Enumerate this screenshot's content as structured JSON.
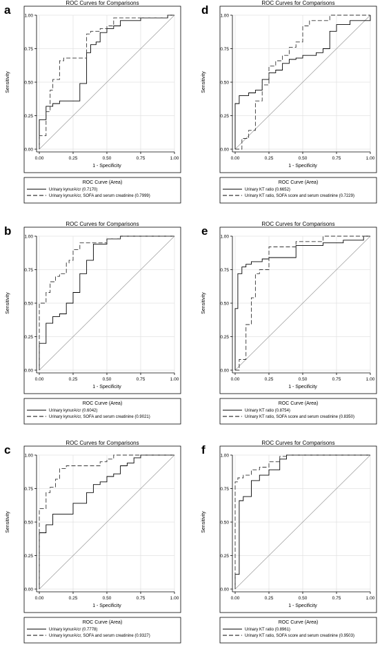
{
  "chart_data": [
    {
      "panel": "a",
      "type": "line",
      "title": "ROC Curves for Comparisons",
      "xlabel": "1 - Specificity",
      "ylabel": "Sensitivity",
      "xlim": [
        0,
        1
      ],
      "ylim": [
        0,
        1
      ],
      "xticks": [
        "0.00",
        "0.25",
        "0.50",
        "0.75",
        "1.00"
      ],
      "yticks": [
        "0.00",
        "0.25",
        "0.50",
        "0.75",
        "1.00"
      ],
      "grid": true,
      "legend_title": "ROC Curve (Area)",
      "legend_position": "bottom",
      "series": [
        {
          "name": "Urinary kynurA/cr",
          "area": "(0.7170)",
          "dash": "solid",
          "x": [
            0,
            0,
            0.05,
            0.05,
            0.1,
            0.1,
            0.15,
            0.15,
            0.3,
            0.3,
            0.35,
            0.35,
            0.38,
            0.38,
            0.42,
            0.42,
            0.45,
            0.45,
            0.5,
            0.5,
            0.55,
            0.55,
            0.6,
            0.6,
            0.75,
            0.75,
            0.95,
            0.95,
            1
          ],
          "y": [
            0,
            0.22,
            0.22,
            0.32,
            0.32,
            0.34,
            0.34,
            0.36,
            0.36,
            0.49,
            0.49,
            0.72,
            0.72,
            0.78,
            0.78,
            0.8,
            0.8,
            0.87,
            0.87,
            0.9,
            0.9,
            0.92,
            0.92,
            0.96,
            0.96,
            0.98,
            0.98,
            1,
            1
          ]
        },
        {
          "name": "Urinary kynurA/cr, SOFA and serum creatinine",
          "area": "(0.7999)",
          "dash": "dash",
          "x": [
            0,
            0,
            0.05,
            0.05,
            0.08,
            0.08,
            0.1,
            0.1,
            0.15,
            0.15,
            0.18,
            0.18,
            0.25,
            0.25,
            0.35,
            0.35,
            0.38,
            0.38,
            0.45,
            0.45,
            0.5,
            0.5,
            0.55,
            0.55,
            0.95,
            0.95,
            1
          ],
          "y": [
            0,
            0.1,
            0.1,
            0.28,
            0.28,
            0.44,
            0.44,
            0.52,
            0.52,
            0.66,
            0.66,
            0.68,
            0.68,
            0.68,
            0.68,
            0.86,
            0.86,
            0.88,
            0.88,
            0.9,
            0.9,
            0.92,
            0.92,
            0.98,
            0.98,
            1,
            1
          ]
        }
      ]
    },
    {
      "panel": "b",
      "type": "line",
      "title": "ROC Curves for Comparisons",
      "xlabel": "1 - Specificity",
      "ylabel": "Sensitivity",
      "xlim": [
        0,
        1
      ],
      "ylim": [
        0,
        1
      ],
      "xticks": [
        "0.00",
        "0.25",
        "0.50",
        "0.75",
        "1.00"
      ],
      "yticks": [
        "0.00",
        "0.25",
        "0.50",
        "0.75",
        "1.00"
      ],
      "grid": true,
      "legend_title": "ROC Curve (Area)",
      "legend_position": "bottom",
      "series": [
        {
          "name": "Urinary kynurA/cr",
          "area": "(0.6042)",
          "dash": "solid",
          "x": [
            0,
            0,
            0.05,
            0.05,
            0.1,
            0.1,
            0.15,
            0.15,
            0.2,
            0.2,
            0.25,
            0.25,
            0.3,
            0.3,
            0.35,
            0.35,
            0.4,
            0.4,
            0.5,
            0.5,
            0.6,
            0.6,
            1
          ],
          "y": [
            0,
            0.2,
            0.2,
            0.35,
            0.35,
            0.4,
            0.4,
            0.42,
            0.42,
            0.5,
            0.5,
            0.58,
            0.58,
            0.72,
            0.72,
            0.82,
            0.82,
            0.94,
            0.94,
            0.98,
            0.98,
            1,
            1
          ]
        },
        {
          "name": "Urinary kynurA/cr, SOFA and serum creatinine",
          "area": "(0.9021)",
          "dash": "dash",
          "x": [
            0,
            0,
            0.05,
            0.05,
            0.08,
            0.08,
            0.12,
            0.12,
            0.15,
            0.15,
            0.2,
            0.2,
            0.22,
            0.22,
            0.25,
            0.25,
            0.3,
            0.3,
            0.5,
            0.5,
            0.6,
            0.6,
            1
          ],
          "y": [
            0,
            0.5,
            0.5,
            0.58,
            0.58,
            0.66,
            0.66,
            0.7,
            0.7,
            0.72,
            0.72,
            0.8,
            0.8,
            0.82,
            0.82,
            0.9,
            0.9,
            0.95,
            0.95,
            0.98,
            0.98,
            1,
            1
          ]
        }
      ]
    },
    {
      "panel": "c",
      "type": "line",
      "title": "ROC Curves for Comparisons",
      "xlabel": "1 - Specificity",
      "ylabel": "Sensitivity",
      "xlim": [
        0,
        1
      ],
      "ylim": [
        0,
        1
      ],
      "xticks": [
        "0.00",
        "0.25",
        "0.50",
        "0.75",
        "1.00"
      ],
      "yticks": [
        "0.00",
        "0.25",
        "0.50",
        "0.75",
        "1.00"
      ],
      "grid": true,
      "legend_title": "ROC Curve (Area)",
      "legend_position": "bottom",
      "series": [
        {
          "name": "Urinary kynurA/cr",
          "area": "(0.7778)",
          "dash": "solid",
          "x": [
            0,
            0,
            0.05,
            0.05,
            0.1,
            0.1,
            0.25,
            0.25,
            0.35,
            0.35,
            0.4,
            0.4,
            0.45,
            0.45,
            0.5,
            0.5,
            0.55,
            0.55,
            0.6,
            0.6,
            0.65,
            0.65,
            0.7,
            0.7,
            0.75,
            0.75,
            1
          ],
          "y": [
            0,
            0.42,
            0.42,
            0.48,
            0.48,
            0.56,
            0.56,
            0.64,
            0.64,
            0.72,
            0.72,
            0.78,
            0.78,
            0.8,
            0.8,
            0.84,
            0.84,
            0.86,
            0.86,
            0.92,
            0.92,
            0.94,
            0.94,
            0.98,
            0.98,
            1,
            1
          ]
        },
        {
          "name": "Urinary kynurA/cr, SOFA and serum creatinine",
          "area": "(0.9327)",
          "dash": "dash",
          "x": [
            0,
            0,
            0.05,
            0.05,
            0.08,
            0.08,
            0.12,
            0.12,
            0.15,
            0.15,
            0.2,
            0.2,
            0.45,
            0.45,
            0.5,
            0.5,
            0.55,
            0.55,
            0.6,
            0.6,
            1
          ],
          "y": [
            0,
            0.6,
            0.6,
            0.72,
            0.72,
            0.76,
            0.76,
            0.82,
            0.82,
            0.9,
            0.9,
            0.92,
            0.92,
            0.95,
            0.95,
            0.97,
            0.97,
            1,
            1,
            1,
            1
          ]
        }
      ]
    },
    {
      "panel": "d",
      "type": "line",
      "title": "ROC Curves for Comparisons",
      "xlabel": "1 - Specificity",
      "ylabel": "Sensitivity",
      "xlim": [
        0,
        1
      ],
      "ylim": [
        0,
        1
      ],
      "xticks": [
        "0.00",
        "0.25",
        "0.50",
        "0.75",
        "1.00"
      ],
      "yticks": [
        "0.00",
        "0.25",
        "0.50",
        "0.75",
        "1.00"
      ],
      "grid": true,
      "legend_title": "ROC Curve (Area)",
      "legend_position": "bottom",
      "series": [
        {
          "name": "Urinary KT ratio",
          "area": "(0.6652)",
          "dash": "solid",
          "x": [
            0,
            0,
            0.03,
            0.03,
            0.1,
            0.1,
            0.15,
            0.15,
            0.2,
            0.2,
            0.25,
            0.25,
            0.3,
            0.3,
            0.35,
            0.35,
            0.4,
            0.4,
            0.45,
            0.45,
            0.5,
            0.5,
            0.6,
            0.6,
            0.65,
            0.65,
            0.7,
            0.7,
            0.75,
            0.75,
            0.85,
            0.85,
            1,
            1
          ],
          "y": [
            0,
            0.34,
            0.34,
            0.4,
            0.4,
            0.42,
            0.42,
            0.44,
            0.44,
            0.52,
            0.52,
            0.57,
            0.57,
            0.59,
            0.59,
            0.64,
            0.64,
            0.67,
            0.67,
            0.68,
            0.68,
            0.7,
            0.7,
            0.72,
            0.72,
            0.75,
            0.75,
            0.88,
            0.88,
            0.93,
            0.93,
            0.96,
            0.96,
            1
          ]
        },
        {
          "name": "Urinary KT ratio, SOFA score and serum creatinine",
          "area": "(0.7229)",
          "dash": "dash",
          "x": [
            0,
            0.05,
            0.05,
            0.1,
            0.1,
            0.15,
            0.15,
            0.2,
            0.2,
            0.25,
            0.25,
            0.3,
            0.3,
            0.35,
            0.35,
            0.4,
            0.4,
            0.45,
            0.45,
            0.5,
            0.5,
            0.55,
            0.55,
            0.7,
            0.7,
            0.75,
            0.75,
            1
          ],
          "y": [
            0,
            0,
            0.08,
            0.08,
            0.14,
            0.14,
            0.36,
            0.36,
            0.48,
            0.48,
            0.62,
            0.62,
            0.66,
            0.66,
            0.7,
            0.7,
            0.76,
            0.76,
            0.8,
            0.8,
            0.92,
            0.92,
            0.96,
            0.96,
            1,
            1,
            1,
            1
          ]
        }
      ]
    },
    {
      "panel": "e",
      "type": "line",
      "title": "ROC Curves for Comparisons",
      "xlabel": "1 - Specificity",
      "ylabel": "Sensitivity",
      "xlim": [
        0,
        1
      ],
      "ylim": [
        0,
        1
      ],
      "xticks": [
        "0.00",
        "0.25",
        "0.50",
        "0.75",
        "1.00"
      ],
      "yticks": [
        "0.00",
        "0.25",
        "0.50",
        "0.75",
        "1.00"
      ],
      "grid": true,
      "legend_title": "ROC Curve (Area)",
      "legend_position": "bottom",
      "series": [
        {
          "name": "Urinary KT ratio",
          "area": "(0.8754)",
          "dash": "solid",
          "x": [
            0,
            0,
            0.02,
            0.02,
            0.05,
            0.05,
            0.08,
            0.08,
            0.12,
            0.12,
            0.2,
            0.2,
            0.25,
            0.25,
            0.35,
            0.35,
            0.45,
            0.45,
            0.65,
            0.65,
            0.8,
            0.8,
            0.95,
            0.95,
            1
          ],
          "y": [
            0,
            0.46,
            0.46,
            0.72,
            0.72,
            0.77,
            0.77,
            0.79,
            0.79,
            0.81,
            0.81,
            0.83,
            0.83,
            0.84,
            0.84,
            0.84,
            0.84,
            0.93,
            0.93,
            0.95,
            0.95,
            0.97,
            0.97,
            1,
            1
          ]
        },
        {
          "name": "Urinary KT ratio, SOFA score and serum creatinine",
          "area": "(0.8350)",
          "dash": "dash",
          "x": [
            0,
            0.03,
            0.03,
            0.08,
            0.08,
            0.12,
            0.12,
            0.15,
            0.15,
            0.18,
            0.18,
            0.25,
            0.25,
            0.45,
            0.45,
            0.65,
            0.65,
            1
          ],
          "y": [
            0,
            0,
            0.08,
            0.08,
            0.34,
            0.34,
            0.54,
            0.54,
            0.72,
            0.72,
            0.75,
            0.75,
            0.92,
            0.92,
            0.96,
            0.96,
            1,
            1
          ]
        }
      ]
    },
    {
      "panel": "f",
      "type": "line",
      "title": "ROC Curves for Comparisons",
      "xlabel": "1 - Specificity",
      "ylabel": "Sensitivity",
      "xlim": [
        0,
        1
      ],
      "ylim": [
        0,
        1
      ],
      "xticks": [
        "0.00",
        "0.25",
        "0.50",
        "0.75",
        "1.00"
      ],
      "yticks": [
        "0.00",
        "0.25",
        "0.50",
        "0.75",
        "1.00"
      ],
      "grid": true,
      "legend_title": "ROC Curve (Area)",
      "legend_position": "bottom",
      "series": [
        {
          "name": "Urinary KT ratio",
          "area": "(0.8961)",
          "dash": "solid",
          "x": [
            0,
            0,
            0.03,
            0.03,
            0.06,
            0.06,
            0.12,
            0.12,
            0.18,
            0.18,
            0.25,
            0.25,
            0.33,
            0.33,
            0.38,
            0.38,
            1
          ],
          "y": [
            0,
            0.11,
            0.11,
            0.66,
            0.66,
            0.69,
            0.69,
            0.81,
            0.81,
            0.85,
            0.85,
            0.89,
            0.89,
            0.97,
            0.97,
            1,
            1
          ]
        },
        {
          "name": "Urinary KT ratio, SOFA score and serum creatinine",
          "area": "(0.9503)",
          "dash": "dash",
          "x": [
            0,
            0,
            0.02,
            0.02,
            0.06,
            0.06,
            0.12,
            0.12,
            0.18,
            0.18,
            0.25,
            0.25,
            0.33,
            0.33,
            0.38,
            0.38,
            1
          ],
          "y": [
            0,
            0.8,
            0.8,
            0.83,
            0.83,
            0.85,
            0.85,
            0.89,
            0.89,
            0.91,
            0.91,
            0.95,
            0.95,
            0.99,
            0.99,
            1,
            1
          ]
        }
      ]
    }
  ]
}
